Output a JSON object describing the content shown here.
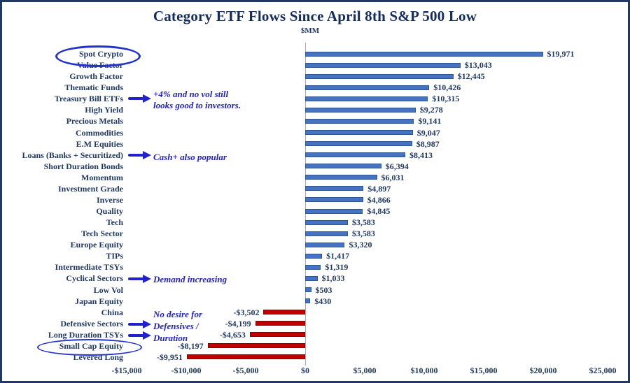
{
  "title": "Category ETF Flows Since April 8th S&P 500 Low",
  "subtitle": "$MM",
  "chart_data": {
    "type": "bar",
    "orientation": "horizontal",
    "title": "Category ETF Flows Since April 8th S&P 500 Low",
    "units_label": "$MM",
    "categories": [
      "Spot Crypto",
      "Value Factor",
      "Growth Factor",
      "Thematic Funds",
      "Treasury Bill ETFs",
      "High Yield",
      "Precious Metals",
      "Commodities",
      "E.M Equities",
      "Loans (Banks + Securitized)",
      "Short Duration Bonds",
      "Momentum",
      "Investment Grade",
      "Inverse",
      "Quality",
      "Tech",
      "Tech Sector",
      "Europe Equity",
      "TIPs",
      "Intermediate TSYs",
      "Cyclical Sectors",
      "Low Vol",
      "Japan Equity",
      "China",
      "Defensive Sectors",
      "Long Duration TSYs",
      "Small Cap Equity",
      "Levered Long"
    ],
    "values": [
      19971,
      13043,
      12445,
      10426,
      10315,
      9278,
      9141,
      9047,
      8987,
      8413,
      6394,
      6031,
      4897,
      4866,
      4845,
      3583,
      3583,
      3320,
      1417,
      1319,
      1033,
      503,
      430,
      -3502,
      -4199,
      -4653,
      -8197,
      -9951
    ],
    "x_ticks": [
      "-$15,000",
      "-$10,000",
      "-$5,000",
      "$0",
      "$5,000",
      "$10,000",
      "$15,000",
      "$20,000",
      "$25,000"
    ],
    "xlim": [
      -15000,
      25000
    ],
    "grid": false,
    "positive_color": "#4472C4",
    "negative_color": "#C00000",
    "text_color": "#1F3864",
    "annotation_color": "#2222CC"
  },
  "annotations": [
    {
      "text": "+4% and no vol still\nlooks good to investors.",
      "target": "Treasury Bill ETFs"
    },
    {
      "text": "Cash+ also popular",
      "target": "Loans (Banks + Securitized)"
    },
    {
      "text": "Demand increasing",
      "target": "Cyclical Sectors"
    },
    {
      "text": "No desire for\nDefensives /\nDuration",
      "target": "Defensive Sectors, Long Duration TSYs"
    }
  ],
  "circled_categories": [
    "Spot Crypto",
    "Small Cap Equity"
  ]
}
